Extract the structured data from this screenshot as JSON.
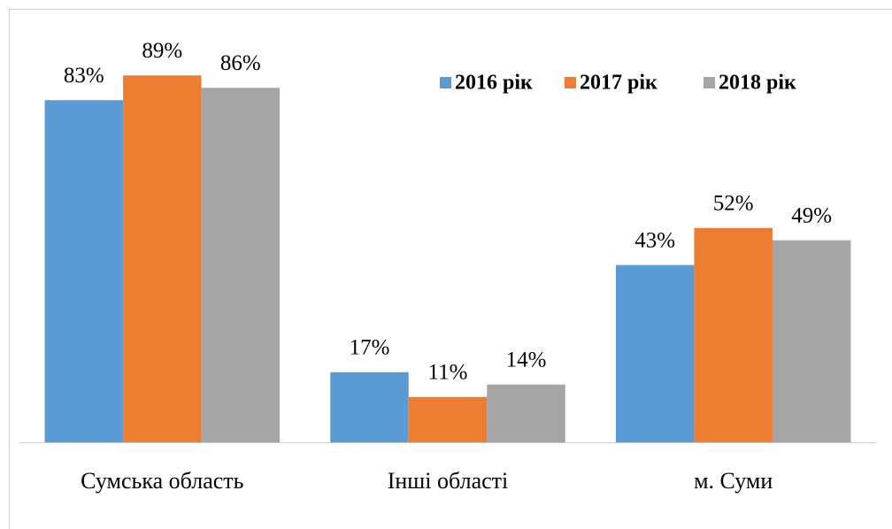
{
  "chart_data": {
    "type": "bar",
    "categories": [
      "Сумська область",
      "Інші області",
      "м. Суми"
    ],
    "series": [
      {
        "name": "2016 рік",
        "color": "#5b9bd5",
        "values": [
          83,
          17,
          43
        ],
        "value_labels": [
          "83%",
          "17%",
          "43%"
        ]
      },
      {
        "name": "2017 рік",
        "color": "#ed7d31",
        "values": [
          89,
          11,
          52
        ],
        "value_labels": [
          "89%",
          "11%",
          "52%"
        ]
      },
      {
        "name": "2018 рік",
        "color": "#a5a5a5",
        "values": [
          86,
          14,
          49
        ],
        "value_labels": [
          "86%",
          "14%",
          "49%"
        ]
      }
    ],
    "legend": "top-right"
  }
}
